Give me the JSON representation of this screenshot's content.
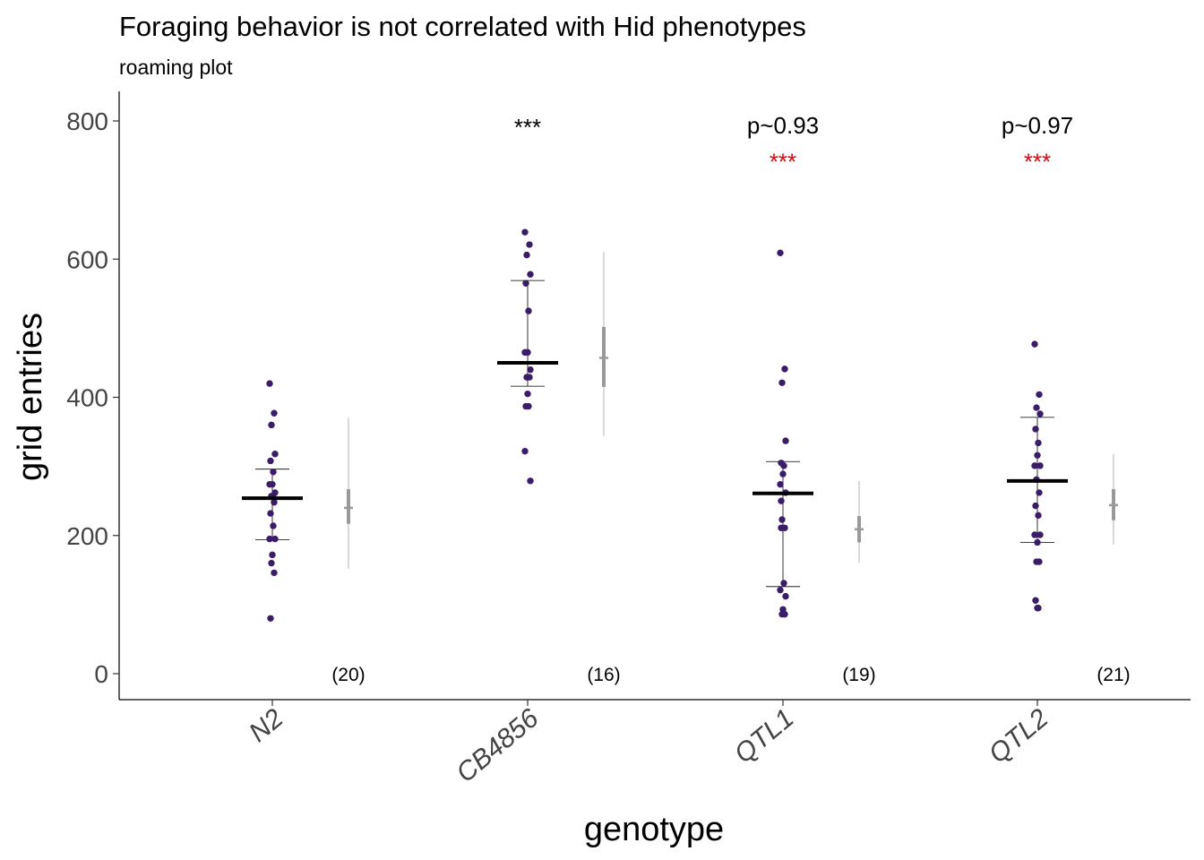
{
  "chart_data": {
    "type": "scatter",
    "title": "Foraging behavior is not correlated with Hid phenotypes",
    "subtitle": "roaming plot",
    "xlabel": "genotype",
    "ylabel": "grid entries",
    "ylim": [
      0,
      800
    ],
    "yticks": [
      "0",
      "200",
      "400",
      "600",
      "800"
    ],
    "grid": false,
    "categories": [
      "N2",
      "CB4856",
      "QTL1",
      "QTL2"
    ],
    "colors": {
      "points": "#3a1c68",
      "mean_bar": "#000000",
      "estimate": "#999999",
      "estimate_thin": "#cccccc",
      "annotation_black": "#000000",
      "annotation_red": "#e8000b"
    },
    "groups": [
      {
        "genotype": "N2",
        "points": [
          420,
          377,
          360,
          318,
          308,
          292,
          274,
          274,
          262,
          257,
          248,
          232,
          214,
          195,
          195,
          172,
          160,
          146,
          80,
          255
        ],
        "mean": 254,
        "sd_low": 194,
        "sd_high": 296,
        "estimate": 240,
        "ci_inner": [
          217,
          267
        ],
        "ci_outer": [
          152,
          370
        ],
        "n_label": "(20)",
        "annotations": []
      },
      {
        "genotype": "CB4856",
        "points": [
          639,
          621,
          606,
          578,
          565,
          525,
          465,
          465,
          440,
          429,
          429,
          387,
          387,
          322,
          279,
          405
        ],
        "mean": 450,
        "sd_low": 416,
        "sd_high": 569,
        "estimate": 457,
        "ci_inner": [
          415,
          502
        ],
        "ci_outer": [
          344,
          610
        ],
        "n_label": "(16)",
        "annotations": [
          {
            "text": "***",
            "color": "#000000",
            "y": 800
          }
        ]
      },
      {
        "genotype": "QTL1",
        "points": [
          609,
          441,
          421,
          337,
          305,
          301,
          289,
          274,
          262,
          223,
          211,
          211,
          131,
          121,
          112,
          93,
          86,
          86,
          250
        ],
        "mean": 261,
        "sd_low": 126,
        "sd_high": 307,
        "estimate": 209,
        "ci_inner": [
          190,
          228
        ],
        "ci_outer": [
          160,
          279
        ],
        "n_label": "(19)",
        "annotations": [
          {
            "text": "p~0.93",
            "color": "#000000",
            "y": 795
          },
          {
            "text": "***",
            "color": "#e8000b",
            "y": 750
          }
        ]
      },
      {
        "genotype": "QTL2",
        "points": [
          477,
          404,
          385,
          376,
          354,
          334,
          316,
          301,
          301,
          281,
          262,
          243,
          229,
          201,
          201,
          190,
          162,
          162,
          106,
          95,
          95
        ],
        "mean": 279,
        "sd_low": 190,
        "sd_high": 371,
        "estimate": 244,
        "ci_inner": [
          222,
          267
        ],
        "ci_outer": [
          187,
          318
        ],
        "n_label": "(21)",
        "annotations": [
          {
            "text": "p~0.97",
            "color": "#000000",
            "y": 795
          },
          {
            "text": "***",
            "color": "#e8000b",
            "y": 750
          }
        ]
      }
    ]
  }
}
